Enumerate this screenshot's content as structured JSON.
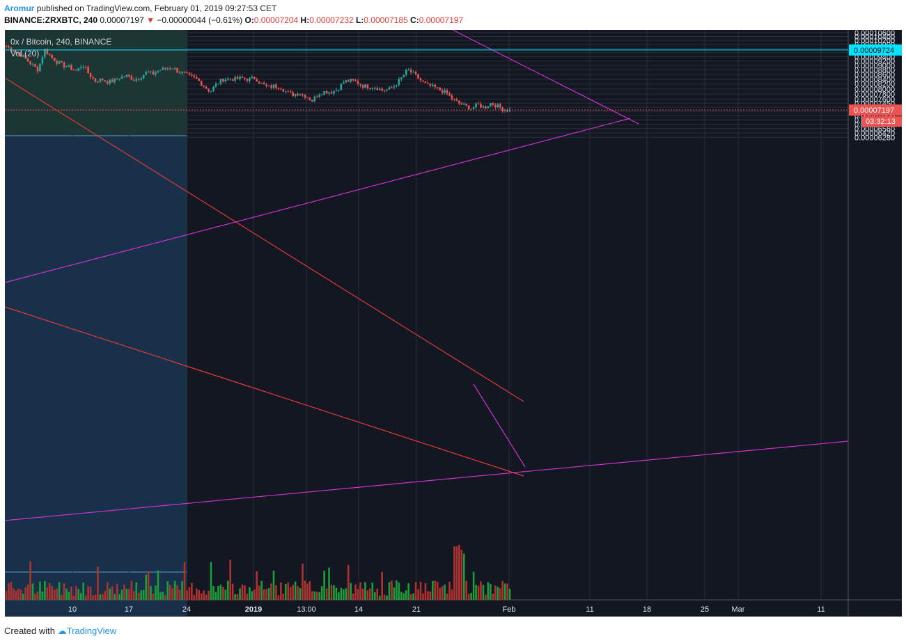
{
  "header": {
    "author": "Aromur",
    "published_text": "published on TradingView.com, February 01, 2019 09:27:53 CET",
    "symbol": "BINANCE:ZRXBTC, 240",
    "last": "0.00007197",
    "change": "−0.00000044 (−0.61%)",
    "o_label": "O:",
    "o_value": "0.00007204",
    "h_label": "H:",
    "h_value": "0.00007232",
    "l_label": "L:",
    "l_value": "0.00007185",
    "c_label": "C:",
    "c_value": "0.00007197"
  },
  "legend": {
    "title": "0x / Bitcoin, 240, BINANCE",
    "indicator": "Vol (20)"
  },
  "footer": {
    "created_with": "Created with",
    "brand": "TradingView"
  },
  "colors": {
    "background": "#131722",
    "grid": "#2a2e39",
    "bull": "#26a69a",
    "bear": "#ef5350",
    "vol_up": "#1b9e3a",
    "vol_down": "#b0322f",
    "trend_red": "#e53935",
    "trend_magenta": "#cc33cc",
    "level_cyan": "#00e5ff",
    "price_tag": "#ef5350"
  },
  "chart_data": {
    "type": "candlestick",
    "y_scale": "log",
    "ylim": [
      6.2e-06,
      0.0001075
    ],
    "y_ticks": [
      "0.00010600",
      "0.00010400",
      "0.00010200",
      "0.00010000",
      "0.00009800",
      "0.00009600",
      "0.00009400",
      "0.00009200",
      "0.00009000",
      "0.00008800",
      "0.00008600",
      "0.00008400",
      "0.00008200",
      "0.00008000",
      "0.00007800",
      "0.00007600",
      "0.00007450",
      "0.00007300",
      "0.00007150",
      "0.00007000",
      "0.00006850",
      "0.00006700",
      "0.00006560",
      "0.00006420",
      "0.00006280"
    ],
    "x_ticks": [
      "10",
      "17",
      "24",
      "2019",
      "13:00",
      "14",
      "21",
      "Feb",
      "11",
      "18",
      "25",
      "Mar",
      "11"
    ],
    "current_price": "0.00007197",
    "countdown": "03:32:13",
    "level_line": {
      "value": "0.00009724"
    },
    "price_path": [
      9.9e-05,
      9.72e-05,
      9.55e-05,
      9.3e-05,
      9.05e-05,
      8.8e-05,
      9.75e-05,
      9.4e-05,
      9.15e-05,
      9e-05,
      8.9e-05,
      8.75e-05,
      9.05e-05,
      8.6e-05,
      8.32e-05,
      8.4e-05,
      8.28e-05,
      8.35e-05,
      8.5e-05,
      8.55e-05,
      8.38e-05,
      8.48e-05,
      8.7e-05,
      8.62e-05,
      8.8e-05,
      8.85e-05,
      8.92e-05,
      8.72e-05,
      8.62e-05,
      8.5e-05,
      8.38e-05,
      8.12e-05,
      7.9e-05,
      8.2e-05,
      8.4e-05,
      8.42e-05,
      8.4e-05,
      8.45e-05,
      8.38e-05,
      8.46e-05,
      8.22e-05,
      8.06e-05,
      8.12e-05,
      8.08e-05,
      7.86e-05,
      7.78e-05,
      7.84e-05,
      7.72e-05,
      7.55e-05,
      7.82e-05,
      7.9e-05,
      7.88e-05,
      8e-05,
      8.3e-05,
      8.34e-05,
      8.28e-05,
      8.12e-05,
      8.1e-05,
      8.06e-05,
      7.95e-05,
      7.98e-05,
      8.15e-05,
      8.45e-05,
      8.8e-05,
      8.6e-05,
      8.35e-05,
      8.15e-05,
      8.08e-05,
      7.96e-05,
      7.85e-05,
      7.6e-05,
      7.45e-05,
      7.35e-05,
      7.25e-05,
      7.4e-05,
      7.28e-05,
      7.45e-05,
      7.35e-05,
      7.22e-05,
      7.19e-05
    ]
  }
}
